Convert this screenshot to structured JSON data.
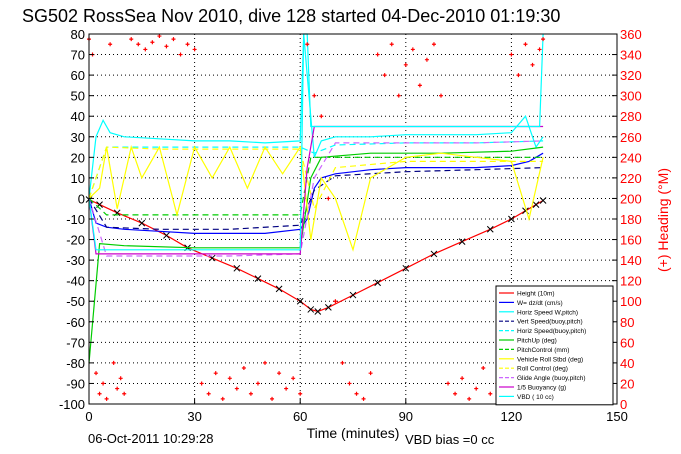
{
  "chart_data": {
    "type": "line",
    "title": "SG502 RossSea Nov 2010, dive 128 started 04-Dec-2010 01:19:30",
    "xlabel": "Time (minutes)",
    "ylabel": "",
    "y2label": "(+) Heading (°M)",
    "xlim": [
      0,
      150
    ],
    "ylim": [
      -100,
      80
    ],
    "y2lim": [
      0,
      360
    ],
    "xticks": [
      "0",
      "30",
      "60",
      "90",
      "120",
      "150"
    ],
    "yticks": [
      "-100",
      "-90",
      "-80",
      "-70",
      "-60",
      "-50",
      "-40",
      "-30",
      "-20",
      "-10",
      "0",
      "10",
      "20",
      "30",
      "40",
      "50",
      "60",
      "70",
      "80"
    ],
    "y2ticks": [
      "0",
      "20",
      "40",
      "60",
      "80",
      "100",
      "120",
      "140",
      "160",
      "180",
      "200",
      "220",
      "240",
      "260",
      "280",
      "300",
      "320",
      "340",
      "360"
    ],
    "grid": true,
    "legend_position": "bottom-right",
    "footer_left": "06-Oct-2011 10:29:28",
    "footer_right": "VBD bias =0 cc",
    "series": [
      {
        "name": "Height (10m)",
        "color": "#ff0000",
        "style": "solid",
        "x": [
          0,
          3,
          8,
          15,
          22,
          28,
          35,
          42,
          48,
          54,
          60,
          63,
          65,
          68,
          75,
          82,
          90,
          98,
          106,
          114,
          120,
          124,
          127,
          129
        ],
        "values": [
          -0.5,
          -3,
          -7,
          -12,
          -18,
          -24,
          -29,
          -34,
          -39,
          -44,
          -50,
          -54,
          -55,
          -53,
          -47,
          -41,
          -34,
          -27,
          -21,
          -15,
          -10,
          -6,
          -3,
          -1
        ]
      },
      {
        "name": "W= dz/dt (cm/s)",
        "color": "#0000ff",
        "style": "solid",
        "x": [
          0,
          2,
          5,
          10,
          20,
          30,
          40,
          50,
          60,
          62,
          64,
          66,
          70,
          80,
          90,
          100,
          110,
          120,
          125,
          129
        ],
        "values": [
          0,
          -12,
          -14,
          -15,
          -16,
          -17,
          -17,
          -17,
          -15,
          -10,
          5,
          10,
          12,
          14,
          15,
          15,
          15,
          16,
          18,
          22
        ]
      },
      {
        "name": "Horiz Speed W,pitch)",
        "color": "#00ffff",
        "style": "solid",
        "x": [
          0,
          2,
          4,
          6,
          10,
          20,
          30,
          40,
          50,
          60,
          61,
          62,
          64,
          66,
          70,
          80,
          90,
          100,
          110,
          120,
          124,
          127,
          129
        ],
        "values": [
          0,
          30,
          38,
          32,
          30,
          29,
          28,
          28,
          27,
          28,
          80,
          60,
          20,
          28,
          30,
          30,
          31,
          31,
          31,
          32,
          40,
          25,
          30
        ]
      },
      {
        "name": "Vert Speed(buoy,pitch)",
        "color": "#000080",
        "style": "dashed",
        "x": [
          0,
          5,
          20,
          40,
          60,
          64,
          70,
          90,
          110,
          129
        ],
        "values": [
          0,
          -14,
          -15,
          -15,
          -13,
          4,
          11,
          13,
          14,
          15
        ]
      },
      {
        "name": "Horiz Speed(buoy,pitch)",
        "color": "#00ffff",
        "style": "dashed",
        "x": [
          0,
          5,
          20,
          40,
          60,
          64,
          70,
          90,
          110,
          129
        ],
        "values": [
          0,
          25,
          25,
          25,
          25,
          22,
          26,
          27,
          27,
          28
        ]
      },
      {
        "name": "PitchUp (deg)",
        "color": "#00cc00",
        "style": "solid",
        "x": [
          0,
          3,
          10,
          30,
          60,
          63,
          66,
          80,
          100,
          120,
          129
        ],
        "values": [
          -80,
          -22,
          -23,
          -24,
          -24,
          10,
          20,
          22,
          22,
          23,
          25
        ]
      },
      {
        "name": "PitchControl (mm)",
        "color": "#00cc00",
        "style": "dashed",
        "x": [
          0,
          5,
          20,
          40,
          60,
          63,
          66,
          90,
          129
        ],
        "values": [
          0,
          -8,
          -8,
          -8,
          -8,
          20,
          20,
          20,
          20
        ]
      },
      {
        "name": "Vehicle Roll Stbd (deg)",
        "color": "#ffff00",
        "style": "solid",
        "x": [
          0,
          3,
          5,
          8,
          12,
          15,
          20,
          25,
          30,
          35,
          40,
          45,
          50,
          55,
          60,
          63,
          66,
          70,
          75,
          80,
          90,
          100,
          110,
          120,
          125,
          129
        ],
        "values": [
          0,
          5,
          25,
          -5,
          25,
          10,
          25,
          -8,
          25,
          10,
          25,
          5,
          25,
          12,
          25,
          -20,
          10,
          0,
          -25,
          10,
          20,
          22,
          20,
          18,
          -10,
          20
        ]
      },
      {
        "name": "Roll Control (deg)",
        "color": "#ffff00",
        "style": "dashed",
        "x": [
          0,
          5,
          20,
          40,
          60,
          64,
          70,
          90,
          110,
          129
        ],
        "values": [
          0,
          25,
          24,
          24,
          24,
          -5,
          15,
          18,
          18,
          18
        ]
      },
      {
        "name": "Glide Angle (buoy,pitch)",
        "color": "#cc66ff",
        "style": "dashed",
        "x": [
          0,
          5,
          20,
          40,
          60,
          64,
          70,
          90,
          110,
          129
        ],
        "values": [
          0,
          -28,
          -28,
          -28,
          -27,
          10,
          27,
          27,
          27,
          28
        ]
      },
      {
        "name": "1/5 Buoyancy (g)",
        "color": "#cc00cc",
        "style": "solid",
        "x": [
          0,
          2,
          4,
          60,
          62,
          64,
          129
        ],
        "values": [
          0,
          -27,
          -27,
          -27,
          15,
          35,
          35
        ]
      },
      {
        "name": "VBD ( 10 cc)",
        "color": "#00ffff",
        "style": "solid",
        "x": [
          0,
          2,
          4,
          60,
          61,
          62,
          63,
          128,
          129
        ],
        "values": [
          0,
          -25,
          -25,
          -25,
          80,
          80,
          35,
          35,
          80
        ]
      },
      {
        "name": "Heading",
        "color": "#ff0000",
        "style": "markers",
        "axis": "right",
        "x": [
          0,
          1,
          2,
          3,
          4,
          5,
          6,
          7,
          8,
          9,
          10,
          12,
          14,
          16,
          18,
          20,
          22,
          24,
          26,
          28,
          30,
          32,
          34,
          36,
          38,
          40,
          42,
          44,
          46,
          48,
          50,
          52,
          54,
          56,
          58,
          60,
          62,
          64,
          66,
          68,
          70,
          72,
          74,
          76,
          78,
          80,
          82,
          84,
          86,
          88,
          90,
          92,
          94,
          96,
          98,
          100,
          102,
          104,
          106,
          108,
          110,
          112,
          114,
          116,
          118,
          120,
          122,
          124,
          126,
          128,
          129
        ],
        "values": [
          355,
          340,
          30,
          10,
          20,
          5,
          350,
          40,
          15,
          25,
          10,
          355,
          350,
          345,
          352,
          358,
          348,
          355,
          340,
          350,
          345,
          20,
          10,
          30,
          5,
          25,
          15,
          35,
          10,
          20,
          40,
          5,
          30,
          15,
          25,
          10,
          350,
          300,
          280,
          200,
          100,
          40,
          20,
          10,
          5,
          30,
          340,
          320,
          350,
          300,
          330,
          345,
          310,
          335,
          350,
          300,
          20,
          10,
          25,
          5,
          15,
          35,
          10,
          20,
          30,
          340,
          320,
          350,
          330,
          345,
          355
        ]
      }
    ]
  }
}
